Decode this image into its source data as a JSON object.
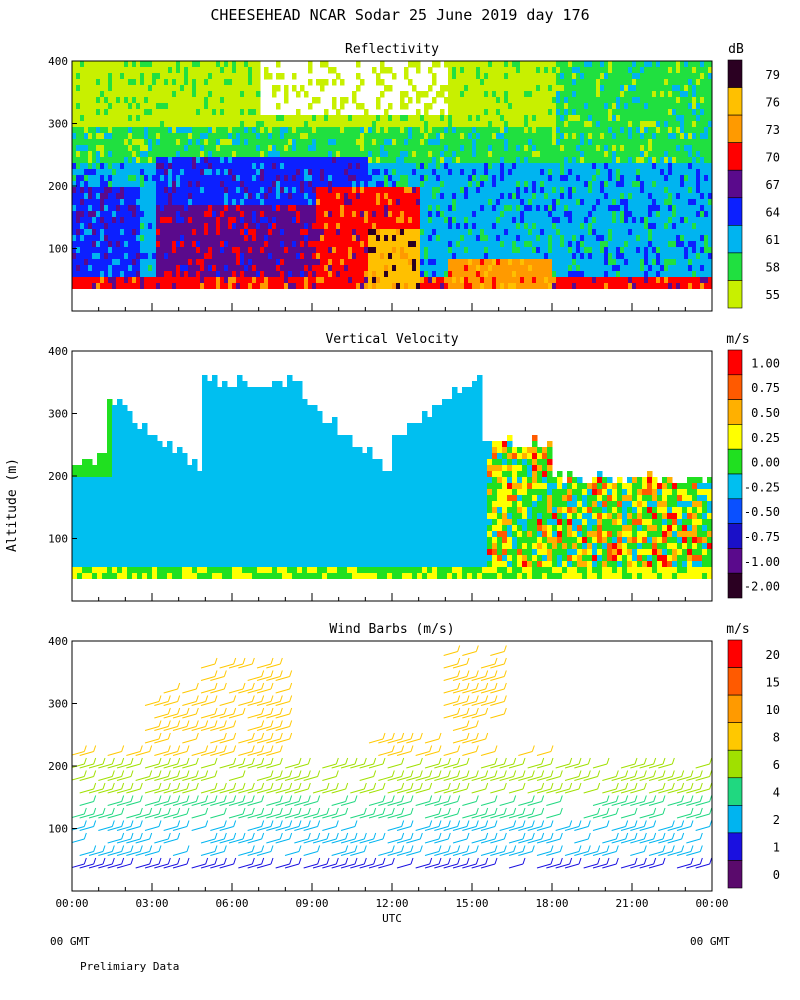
{
  "title": "CHEESEHEAD  NCAR Sodar  25 June 2019  day 176",
  "xlabel": "UTC",
  "ylabel": "Altitude (m)",
  "x_ticks": [
    "00:00",
    "03:00",
    "06:00",
    "09:00",
    "12:00",
    "15:00",
    "18:00",
    "21:00",
    "00:00"
  ],
  "footer": {
    "left_gmt": "00 GMT",
    "right_gmt": "00 GMT",
    "note": "Prelimiary Data"
  },
  "chart_data": [
    {
      "type": "heatmap",
      "title": "Reflectivity",
      "unit": "dB",
      "x_range_hours": [
        0,
        24
      ],
      "ylim": [
        0,
        400
      ],
      "y_ticks": [
        100,
        200,
        300,
        400
      ],
      "color_levels": [
        {
          "label": "79",
          "color": "#2b0022"
        },
        {
          "label": "76",
          "color": "#ffc000"
        },
        {
          "label": "73",
          "color": "#ff9a00"
        },
        {
          "label": "70",
          "color": "#ff0000"
        },
        {
          "label": "67",
          "color": "#5a0a8c"
        },
        {
          "label": "64",
          "color": "#0c20ff"
        },
        {
          "label": "61",
          "color": "#00b4f0"
        },
        {
          "label": "58",
          "color": "#20e040"
        },
        {
          "label": "55",
          "color": "#c8f000"
        }
      ]
    },
    {
      "type": "heatmap",
      "title": "Vertical Velocity",
      "unit": "m/s",
      "x_range_hours": [
        0,
        24
      ],
      "ylim": [
        0,
        400
      ],
      "y_ticks": [
        100,
        200,
        300,
        400
      ],
      "color_levels": [
        {
          "label": "1.00",
          "color": "#ff0000"
        },
        {
          "label": "0.75",
          "color": "#ff5a00"
        },
        {
          "label": "0.50",
          "color": "#ffb000"
        },
        {
          "label": "0.25",
          "color": "#ffff00"
        },
        {
          "label": "0.00",
          "color": "#20e020"
        },
        {
          "label": "-0.25",
          "color": "#00bff0"
        },
        {
          "label": "-0.50",
          "color": "#0a50ff"
        },
        {
          "label": "-0.75",
          "color": "#1a10c8"
        },
        {
          "label": "-1.00",
          "color": "#5a0a8c"
        },
        {
          "label": "-2.00",
          "color": "#2b0022"
        }
      ]
    },
    {
      "type": "scatter",
      "title": "Wind Barbs (m/s)",
      "unit": "m/s",
      "x_range_hours": [
        0,
        24
      ],
      "ylim": [
        0,
        400
      ],
      "y_ticks": [
        100,
        200,
        300,
        400
      ],
      "color_levels": [
        {
          "label": "20",
          "color": "#ff0000"
        },
        {
          "label": "15",
          "color": "#ff5a00"
        },
        {
          "label": "10",
          "color": "#ff9a00"
        },
        {
          "label": "8",
          "color": "#ffc800"
        },
        {
          "label": "6",
          "color": "#a0e000"
        },
        {
          "label": "4",
          "color": "#20d880"
        },
        {
          "label": "2",
          "color": "#00b4f0"
        },
        {
          "label": "1",
          "color": "#1a10e0"
        },
        {
          "label": "0",
          "color": "#5a0a6c"
        }
      ]
    }
  ]
}
